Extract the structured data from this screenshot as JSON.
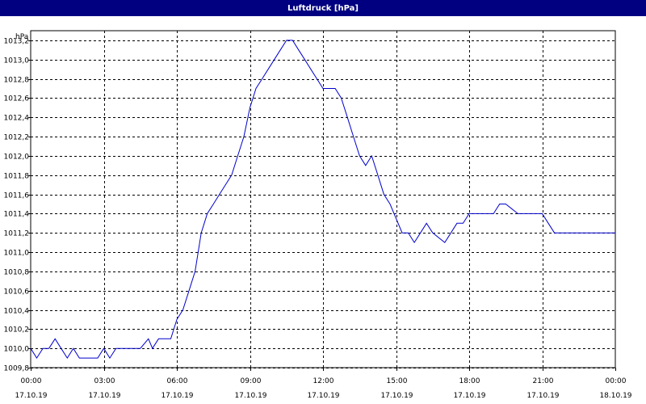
{
  "window": {
    "title": "Luftdruck [hPa]"
  },
  "chart_data": {
    "type": "line",
    "title": "Luftdruck [hPa]",
    "ylabel": "hPa",
    "xlabel": "",
    "ylim": [
      1009.8,
      1013.3
    ],
    "grid": true,
    "line_color": "#0000cc",
    "y_ticks": [
      {
        "value": 1009.8,
        "label": "1009,8"
      },
      {
        "value": 1010.0,
        "label": "1010,0"
      },
      {
        "value": 1010.2,
        "label": "1010,2"
      },
      {
        "value": 1010.4,
        "label": "1010,4"
      },
      {
        "value": 1010.6,
        "label": "1010,6"
      },
      {
        "value": 1010.8,
        "label": "1010,8"
      },
      {
        "value": 1011.0,
        "label": "1011,0"
      },
      {
        "value": 1011.2,
        "label": "1011,2"
      },
      {
        "value": 1011.4,
        "label": "1011,4"
      },
      {
        "value": 1011.6,
        "label": "1011,6"
      },
      {
        "value": 1011.8,
        "label": "1011,8"
      },
      {
        "value": 1012.0,
        "label": "1012,0"
      },
      {
        "value": 1012.2,
        "label": "1012,2"
      },
      {
        "value": 1012.4,
        "label": "1012,4"
      },
      {
        "value": 1012.6,
        "label": "1012,6"
      },
      {
        "value": 1012.8,
        "label": "1012,8"
      },
      {
        "value": 1013.0,
        "label": "1013,0"
      },
      {
        "value": 1013.2,
        "label": "1013,2"
      }
    ],
    "x_ticks": [
      {
        "time": "00:00",
        "date": "17.10.19"
      },
      {
        "time": "03:00",
        "date": "17.10.19"
      },
      {
        "time": "06:00",
        "date": "17.10.19"
      },
      {
        "time": "09:00",
        "date": "17.10.19"
      },
      {
        "time": "12:00",
        "date": "17.10.19"
      },
      {
        "time": "15:00",
        "date": "17.10.19"
      },
      {
        "time": "18:00",
        "date": "17.10.19"
      },
      {
        "time": "21:00",
        "date": "17.10.19"
      },
      {
        "time": "00:00",
        "date": "18.10.19"
      }
    ],
    "series": [
      {
        "x": [
          "00:00",
          "00:15",
          "00:30",
          "00:45",
          "01:00",
          "01:15",
          "01:30",
          "01:45",
          "02:00",
          "02:15",
          "02:30",
          "02:45",
          "03:00",
          "03:15",
          "03:30",
          "04:00",
          "04:30",
          "04:50",
          "05:00",
          "05:15",
          "05:30",
          "05:45",
          "06:00",
          "06:15",
          "06:30",
          "06:45",
          "07:00",
          "07:15",
          "07:30",
          "07:45",
          "08:00",
          "08:15",
          "08:30",
          "08:45",
          "09:00",
          "09:15",
          "09:30",
          "09:45",
          "10:00",
          "10:15",
          "10:30",
          "10:45",
          "11:00",
          "11:15",
          "11:30",
          "11:45",
          "12:00",
          "12:15",
          "12:30",
          "12:45",
          "13:00",
          "13:15",
          "13:30",
          "13:45",
          "14:00",
          "14:15",
          "14:30",
          "14:45",
          "14:55",
          "15:05",
          "15:15",
          "15:30",
          "15:45",
          "16:00",
          "16:15",
          "16:30",
          "17:00",
          "17:15",
          "17:30",
          "17:45",
          "18:00",
          "18:15",
          "18:30",
          "18:45",
          "19:00",
          "19:15",
          "19:30",
          "20:00",
          "21:00",
          "21:15",
          "21:30",
          "21:45",
          "22:00",
          "22:30",
          "23:00",
          "23:15",
          "23:30",
          "23:45",
          "00:00"
        ],
        "y": [
          1010.0,
          1009.9,
          1010.0,
          1010.0,
          1010.1,
          1010.0,
          1009.9,
          1010.0,
          1009.9,
          1009.9,
          1009.9,
          1009.9,
          1010.0,
          1009.9,
          1010.0,
          1010.0,
          1010.0,
          1010.1,
          1010.0,
          1010.1,
          1010.1,
          1010.1,
          1010.3,
          1010.4,
          1010.6,
          1010.8,
          1011.2,
          1011.4,
          1011.5,
          1011.6,
          1011.7,
          1011.8,
          1012.0,
          1012.2,
          1012.5,
          1012.7,
          1012.8,
          1012.9,
          1013.0,
          1013.1,
          1013.2,
          1013.2,
          1013.1,
          1013.0,
          1012.9,
          1012.8,
          1012.7,
          1012.7,
          1012.7,
          1012.6,
          1012.4,
          1012.2,
          1012.0,
          1011.9,
          1012.0,
          1011.8,
          1011.6,
          1011.5,
          1011.4,
          1011.3,
          1011.2,
          1011.2,
          1011.1,
          1011.2,
          1011.3,
          1011.2,
          1011.1,
          1011.2,
          1011.3,
          1011.3,
          1011.4,
          1011.4,
          1011.4,
          1011.4,
          1011.4,
          1011.5,
          1011.5,
          1011.4,
          1011.4,
          1011.3,
          1011.2,
          1011.2,
          1011.2,
          1011.2,
          1011.2,
          1011.2,
          1011.2,
          1011.2,
          1011.2
        ]
      }
    ]
  }
}
